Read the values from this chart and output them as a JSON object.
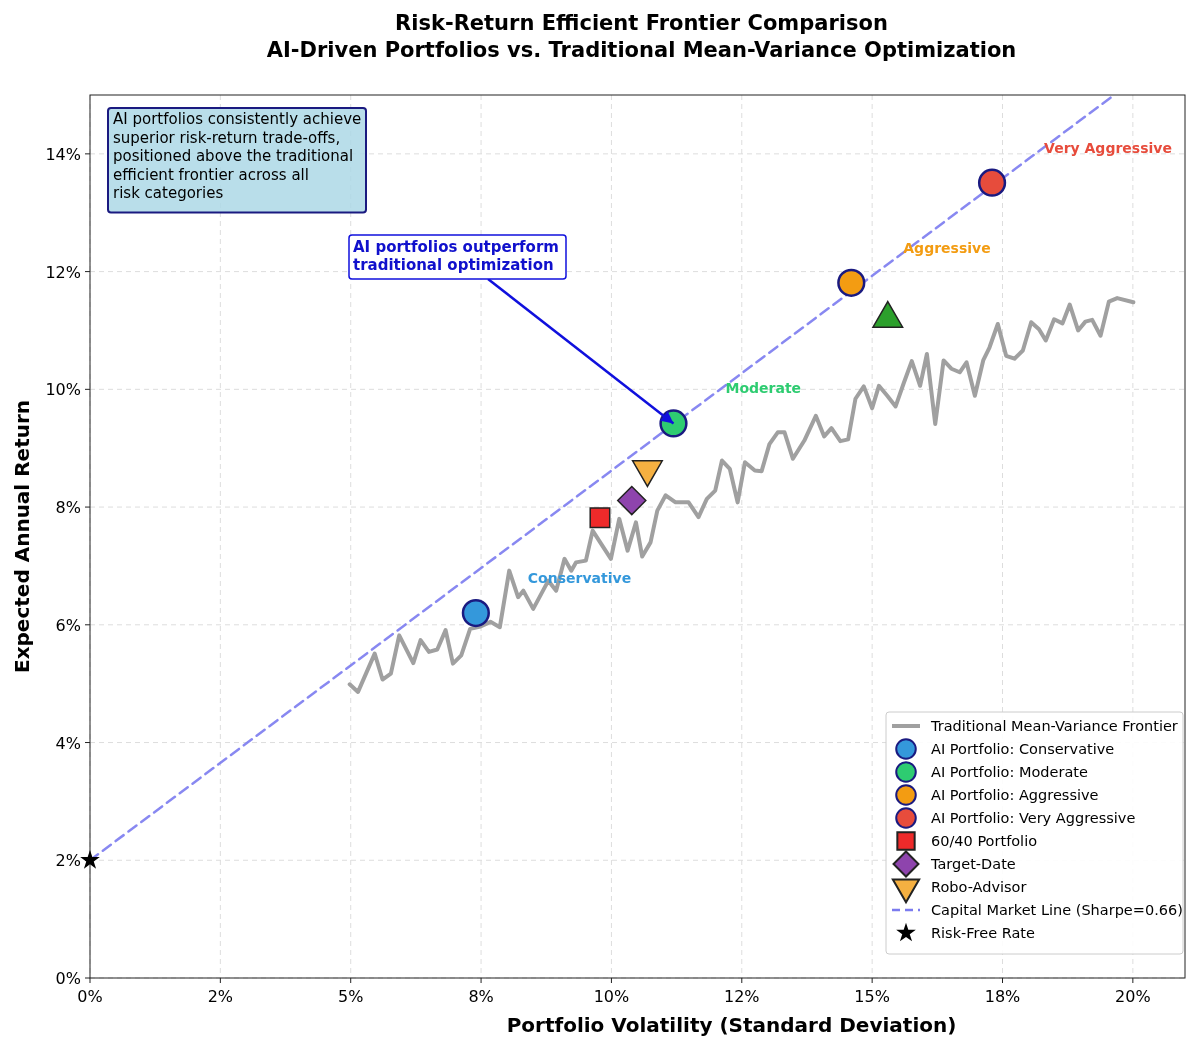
{
  "chart_data": {
    "type": "scatter",
    "title": "Risk-Return Efficient Frontier Comparison\nAI-Driven Portfolios vs. Traditional Mean-Variance Optimization",
    "xlabel": "Portfolio Volatility (Standard Deviation)",
    "ylabel": "Expected Annual Return",
    "xlim": [
      0,
      21
    ],
    "ylim": [
      0,
      15
    ],
    "xticks": [
      {
        "value": 0,
        "label": "0%"
      },
      {
        "value": 2.5,
        "label": "2%"
      },
      {
        "value": 5,
        "label": "5%"
      },
      {
        "value": 7.5,
        "label": "8%"
      },
      {
        "value": 10,
        "label": "10%"
      },
      {
        "value": 12.5,
        "label": "12%"
      },
      {
        "value": 15,
        "label": "15%"
      },
      {
        "value": 17.5,
        "label": "18%"
      },
      {
        "value": 20,
        "label": "20%"
      }
    ],
    "yticks": [
      {
        "value": 0,
        "label": "0%"
      },
      {
        "value": 2,
        "label": "2%"
      },
      {
        "value": 4,
        "label": "4%"
      },
      {
        "value": 6,
        "label": "6%"
      },
      {
        "value": 8,
        "label": "8%"
      },
      {
        "value": 10,
        "label": "10%"
      },
      {
        "value": 12,
        "label": "12%"
      },
      {
        "value": 14,
        "label": "14%"
      }
    ],
    "grid": true,
    "legend": "bottom right",
    "series": [
      {
        "name": "Traditional Mean-Variance Frontier",
        "type": "line",
        "color": "#a0a0a0",
        "marker": "none",
        "line_style": "solid",
        "x": [
          4.98,
          5.14,
          5.46,
          5.61,
          5.77,
          5.93,
          6.2,
          6.34,
          6.5,
          6.66,
          6.82,
          6.96,
          7.12,
          7.29,
          7.49,
          7.68,
          7.86,
          8.04,
          8.21,
          8.31,
          8.5,
          8.79,
          8.94,
          9.1,
          9.23,
          9.32,
          9.51,
          9.64,
          9.8,
          9.99,
          10.15,
          10.31,
          10.47,
          10.59,
          10.75,
          10.88,
          11.04,
          11.23,
          11.48,
          11.67,
          11.83,
          11.99,
          12.12,
          12.27,
          12.42,
          12.56,
          12.75,
          12.88,
          13.03,
          13.19,
          13.32,
          13.48,
          13.7,
          13.92,
          14.08,
          14.22,
          14.39,
          14.54,
          14.68,
          14.84,
          15.0,
          15.13,
          15.29,
          15.45,
          15.6,
          15.76,
          15.92,
          16.05,
          16.21,
          16.37,
          16.52,
          16.68,
          16.81,
          16.97,
          17.13,
          17.25,
          17.41,
          17.57,
          17.73,
          17.89,
          18.05,
          18.2,
          18.33,
          18.49,
          18.65,
          18.79,
          18.95,
          19.09,
          19.22,
          19.38,
          19.54,
          19.7,
          20.01
        ],
        "values": [
          4.99,
          4.86,
          5.51,
          5.07,
          5.17,
          5.82,
          5.35,
          5.74,
          5.54,
          5.58,
          5.91,
          5.34,
          5.48,
          5.93,
          5.97,
          6.05,
          5.96,
          6.92,
          6.47,
          6.58,
          6.27,
          6.75,
          6.58,
          7.12,
          6.92,
          7.06,
          7.09,
          7.6,
          7.38,
          7.12,
          7.8,
          7.26,
          7.74,
          7.16,
          7.4,
          7.94,
          8.2,
          8.08,
          8.08,
          7.83,
          8.14,
          8.28,
          8.79,
          8.65,
          8.08,
          8.76,
          8.62,
          8.61,
          9.07,
          9.27,
          9.27,
          8.82,
          9.13,
          9.55,
          9.2,
          9.34,
          9.12,
          9.15,
          9.84,
          10.05,
          9.68,
          10.06,
          9.89,
          9.71,
          10.09,
          10.48,
          10.06,
          10.6,
          9.41,
          10.49,
          10.35,
          10.29,
          10.46,
          9.89,
          10.49,
          10.71,
          11.11,
          10.57,
          10.52,
          10.66,
          11.14,
          11.02,
          10.83,
          11.19,
          11.12,
          11.44,
          11.0,
          11.15,
          11.18,
          10.91,
          11.49,
          11.55,
          11.48
        ]
      },
      {
        "name": "AI Portfolio: Conservative",
        "color": "#3498db",
        "marker": "circle",
        "x": [
          7.4
        ],
        "values": [
          6.2
        ]
      },
      {
        "name": "AI Portfolio: Moderate",
        "color": "#2ecc71",
        "marker": "circle",
        "x": [
          11.19
        ],
        "values": [
          9.42
        ]
      },
      {
        "name": "AI Portfolio: Aggressive",
        "color": "#f39c12",
        "marker": "circle",
        "x": [
          14.6
        ],
        "values": [
          11.81
        ]
      },
      {
        "name": "AI Portfolio: Very Aggressive",
        "color": "#e74c3c",
        "marker": "circle",
        "x": [
          17.3
        ],
        "values": [
          13.51
        ]
      },
      {
        "name": "60/40 Portfolio",
        "color": "#ee2a2a",
        "marker": "square",
        "x": [
          9.78
        ],
        "values": [
          7.82
        ]
      },
      {
        "color": "#2ca02c",
        "marker": "triangle",
        "x": [
          15.3
        ],
        "values": [
          11.2
        ]
      },
      {
        "name": "Target-Date",
        "color": "#8e44ad",
        "marker": "diamond",
        "x": [
          10.39
        ],
        "values": [
          8.11
        ]
      },
      {
        "name": "Robo-Advisor",
        "color": "#f5b041",
        "marker": "triangle-down",
        "x": [
          10.69
        ],
        "values": [
          8.64
        ]
      },
      {
        "name": "Capital Market Line (Sharpe=0.66)",
        "type": "line",
        "color": "#7b7bef",
        "marker": "none",
        "line_style": "dashed",
        "x": [
          0,
          19.64
        ],
        "values": [
          2,
          15
        ]
      },
      {
        "name": "Risk-Free Rate",
        "color": "#000000",
        "marker": "star",
        "x": [
          0
        ],
        "values": [
          2
        ]
      }
    ],
    "annotations": [
      "Conservative",
      "Moderate",
      "Aggressive",
      "Very Aggressive",
      {
        "text": "AI portfolios outperform\ntraditional optimization",
        "x": 11.19,
        "y": 9.42
      },
      "AI portfolios consistently achieve\nsuperior risk-return trade-offs,\npositioned above the traditional\nefficient frontier across all\nrisk categories"
    ]
  }
}
